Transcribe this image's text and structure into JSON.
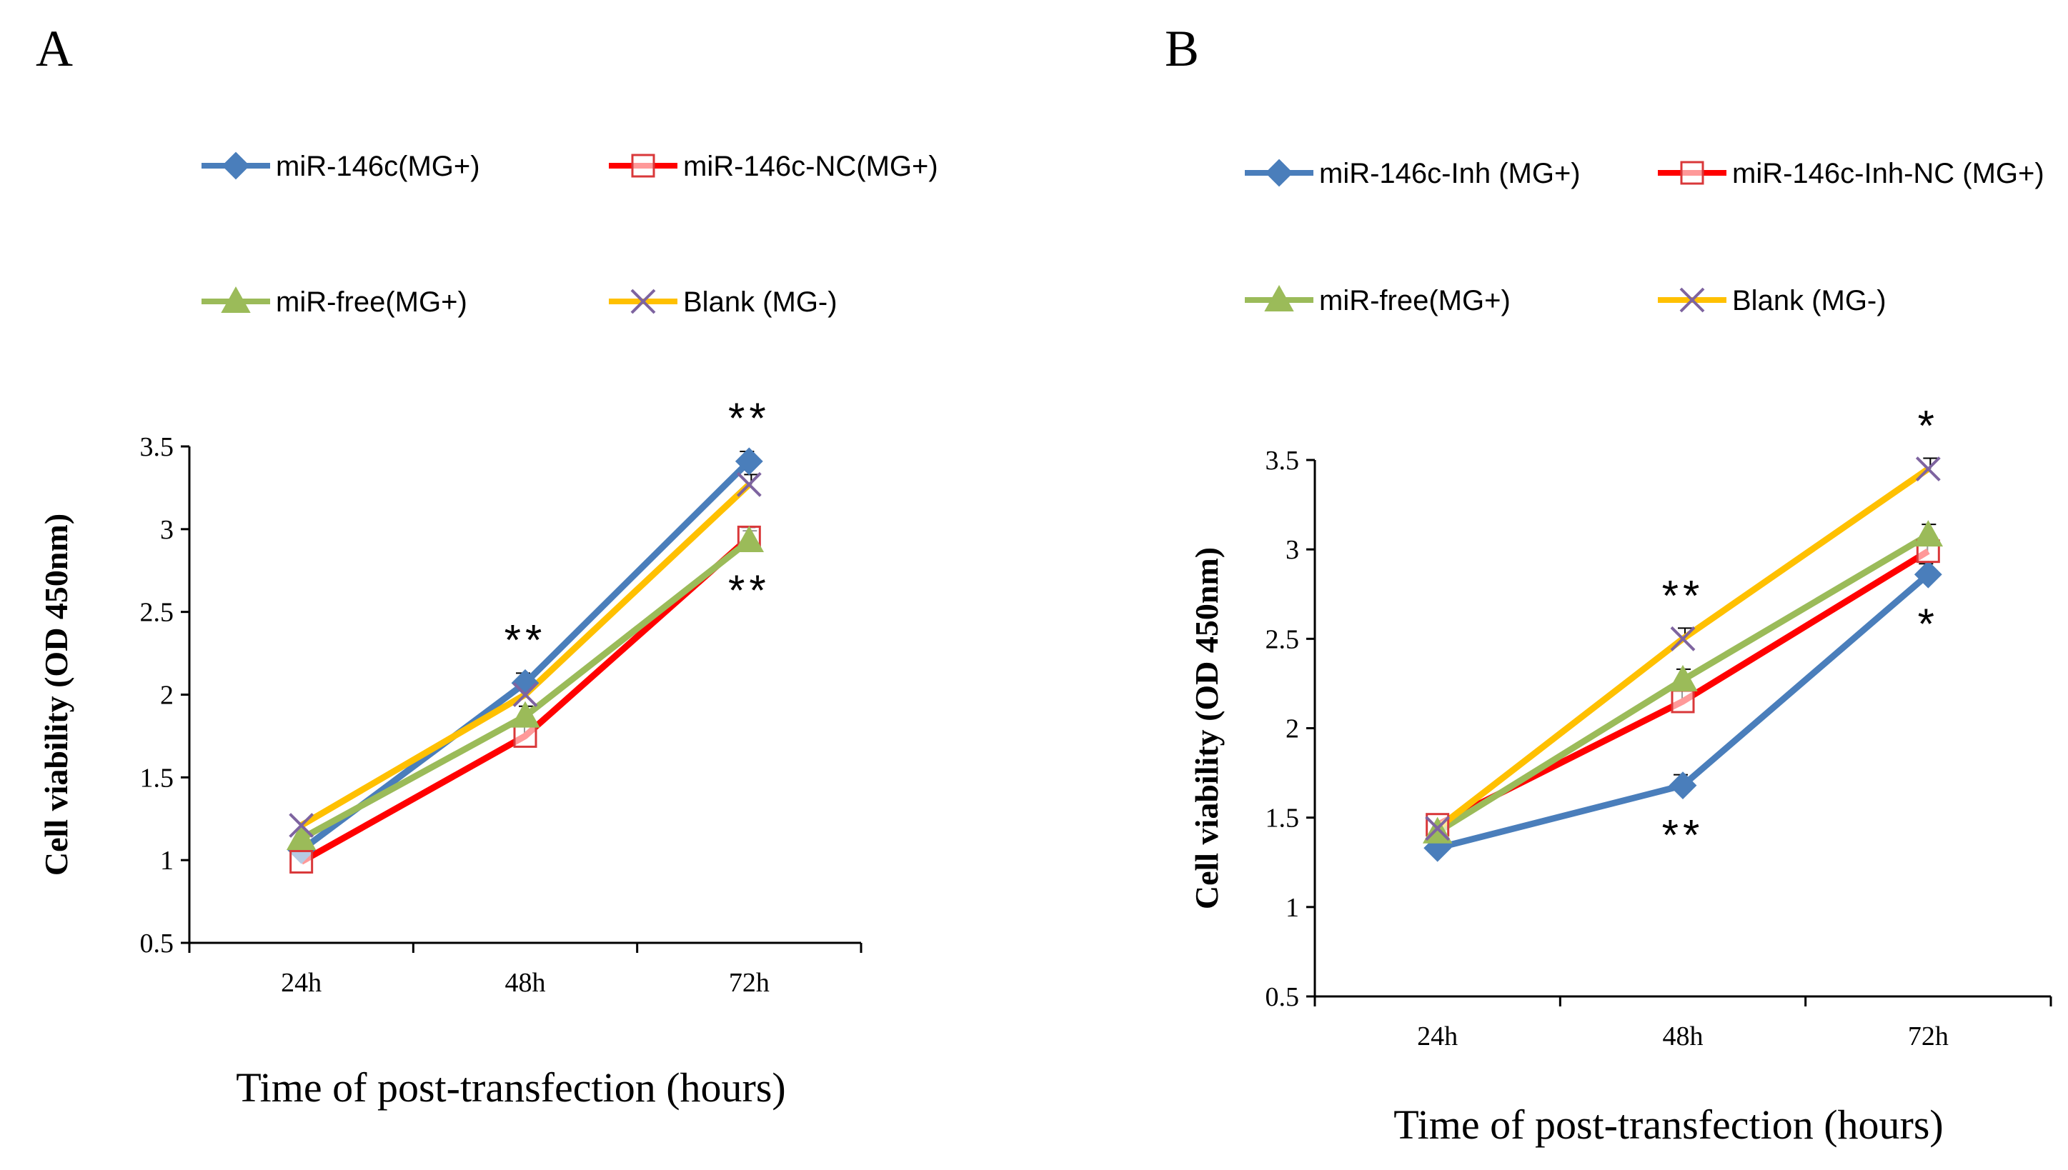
{
  "chart_data": [
    {
      "panel": "A",
      "type": "line",
      "title": "",
      "xlabel": "Time  of  post-transfection  (hours)",
      "ylabel": "Cell viability (OD 450nm)",
      "categories": [
        "24h",
        "48h",
        "72h"
      ],
      "ylim": [
        0.5,
        3.5
      ],
      "yticks": [
        "0.5",
        "1",
        "1.5",
        "2",
        "2.5",
        "3",
        "3.5"
      ],
      "series": [
        {
          "name": "miR-146c(MG+)",
          "values": [
            1.06,
            2.07,
            3.41
          ],
          "color": "#4a7ebb",
          "marker": "diamond"
        },
        {
          "name": "miR-146c-NC(MG+)",
          "values": [
            0.99,
            1.75,
            2.95
          ],
          "color": "#ff0000",
          "marker": "square-open"
        },
        {
          "name": "miR-free(MG+)",
          "values": [
            1.13,
            1.87,
            2.93
          ],
          "color": "#9bbb59",
          "marker": "triangle"
        },
        {
          "name": "Blank (MG-)",
          "values": [
            1.21,
            2.0,
            3.27
          ],
          "color": "#ffc000",
          "marker": "x"
        }
      ],
      "annotations": [
        {
          "text": "**",
          "category": "48h",
          "position": "above"
        },
        {
          "text": "**",
          "category": "72h",
          "position": "above"
        },
        {
          "text": "**",
          "category": "72h",
          "position": "below"
        }
      ]
    },
    {
      "panel": "B",
      "type": "line",
      "title": "",
      "xlabel": "Time  of  post-transfection  (hours)",
      "ylabel": "Cell viability (OD 450nm)",
      "categories": [
        "24h",
        "48h",
        "72h"
      ],
      "ylim": [
        0.5,
        3.5
      ],
      "yticks": [
        "0.5",
        "1",
        "1.5",
        "2",
        "2.5",
        "3",
        "3.5"
      ],
      "series": [
        {
          "name": "miR-146c-Inh (MG+)",
          "values": [
            1.33,
            1.68,
            2.86
          ],
          "color": "#4a7ebb",
          "marker": "diamond"
        },
        {
          "name": "miR-146c-Inh-NC (MG+)",
          "values": [
            1.46,
            2.15,
            2.99
          ],
          "color": "#ff0000",
          "marker": "square-open"
        },
        {
          "name": "miR-free(MG+)",
          "values": [
            1.42,
            2.27,
            3.08
          ],
          "color": "#9bbb59",
          "marker": "triangle"
        },
        {
          "name": "Blank (MG-)",
          "values": [
            1.44,
            2.5,
            3.45
          ],
          "color": "#ffc000",
          "marker": "x"
        }
      ],
      "annotations": [
        {
          "text": "**",
          "category": "48h",
          "position": "above"
        },
        {
          "text": "**",
          "category": "48h",
          "position": "below"
        },
        {
          "text": "*",
          "category": "72h",
          "position": "above"
        },
        {
          "text": "*",
          "category": "72h",
          "position": "below"
        }
      ]
    }
  ]
}
